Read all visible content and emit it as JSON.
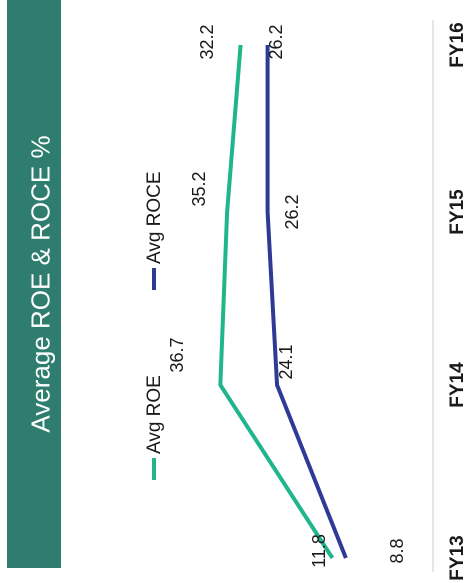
{
  "chart_data": {
    "type": "line",
    "title": "Average ROE & ROCE %",
    "categories": [
      "FY13",
      "FY14",
      "FY15",
      "FY16"
    ],
    "series": [
      {
        "name": "Avg ROE",
        "values": [
          11.8,
          36.7,
          35.2,
          32.2
        ],
        "color": "#20b58b"
      },
      {
        "name": "Avg ROCE",
        "values": [
          8.8,
          24.1,
          26.2,
          26.2
        ],
        "color": "#2e3b96"
      }
    ],
    "legend_position": "top",
    "grid": false
  }
}
